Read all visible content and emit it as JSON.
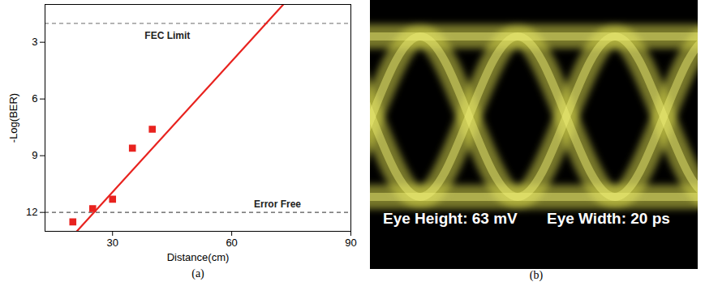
{
  "chart_data": {
    "type": "scatter",
    "caption": "(a)",
    "x_label": "Distance(cm)",
    "y_label": "-Log(BER)",
    "xlim": [
      13,
      90
    ],
    "xticks": [
      30,
      60,
      90
    ],
    "ylim": [
      13,
      1
    ],
    "yticks": [
      3,
      6,
      9,
      12
    ],
    "grid": false,
    "series": [
      {
        "type": "scatter",
        "marker": "square",
        "color": "#e8231f",
        "x": [
          20,
          25,
          30,
          35,
          40
        ],
        "values": [
          12.5,
          11.8,
          11.3,
          8.6,
          7.6
        ]
      },
      {
        "type": "line",
        "line_style": "solid",
        "color": "#e8231f",
        "x": [
          21,
          73
        ],
        "values": [
          13,
          1
        ]
      }
    ],
    "reference_lines": [
      {
        "y": 2,
        "label": "FEC Limit",
        "line_style": "dashed",
        "color": "#888888"
      },
      {
        "y": 12,
        "label": "Error Free",
        "line_style": "dashed",
        "color": "#555555"
      }
    ]
  },
  "eye_diagram": {
    "caption": "(b)",
    "texts": [
      "Eye Height: 63 mV",
      "Eye Width: 20 ps"
    ]
  }
}
